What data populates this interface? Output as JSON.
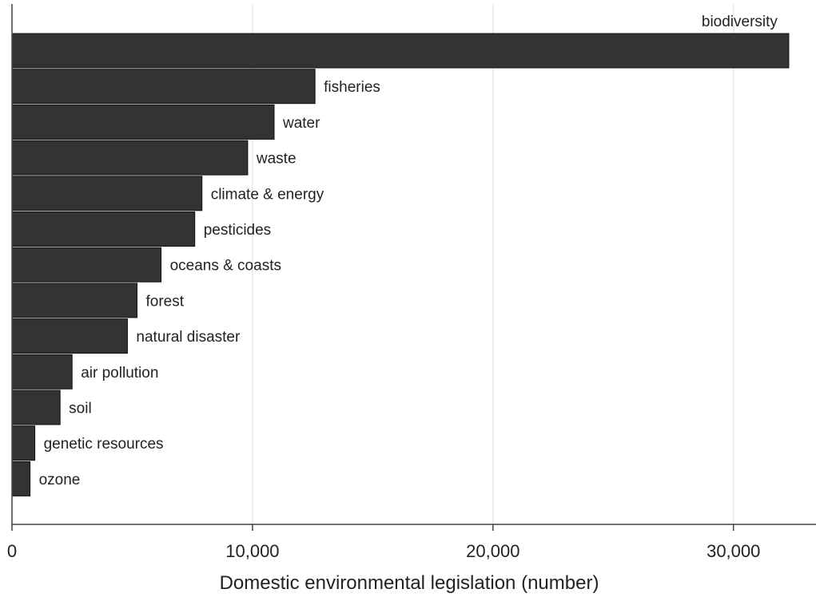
{
  "chart_data": {
    "type": "bar",
    "orientation": "horizontal",
    "categories": [
      "biodiversity",
      "fisheries",
      "water",
      "waste",
      "climate & energy",
      "pesticides",
      "oceans & coasts",
      "forest",
      "natural disaster",
      "air pollution",
      "soil",
      "genetic resources",
      "ozone"
    ],
    "values": [
      32300,
      12600,
      10900,
      9800,
      7900,
      7600,
      6200,
      5200,
      4800,
      2500,
      2000,
      950,
      750
    ],
    "xlabel": "Domestic environmental legislation (number)",
    "xlim": [
      0,
      33000
    ],
    "xticks": [
      0,
      10000,
      20000,
      30000
    ],
    "xtick_labels": [
      "0",
      "10,000",
      "20,000",
      "30,000"
    ],
    "grid": "vertical",
    "bar_color": "#333333",
    "grid_color": "#e3eaea"
  }
}
